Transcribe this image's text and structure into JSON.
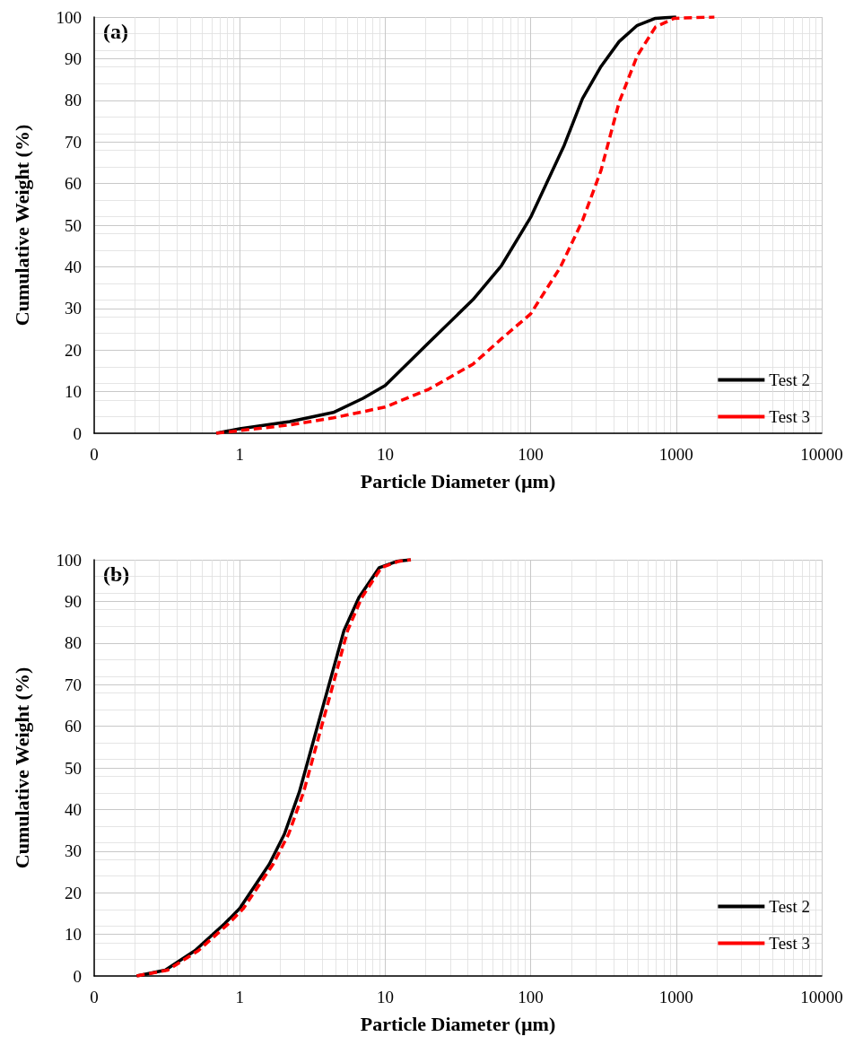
{
  "chart_data": [
    {
      "type": "line",
      "xlabel": "Particle Diameter (µm)",
      "ylabel": "Cumulative Weight (%)",
      "annotations": [
        "(a)"
      ],
      "log": "x",
      "grid": true,
      "legend": "bottom right",
      "marker": "none",
      "xlim": [
        0.1,
        10000
      ],
      "xticks": [
        {
          "value": 0.1,
          "label": "0"
        },
        1,
        10,
        100,
        1000,
        10000
      ],
      "ylim": [
        0,
        100
      ],
      "yticks": [
        0,
        10,
        20,
        30,
        40,
        50,
        60,
        70,
        80,
        90,
        100
      ],
      "series": [
        {
          "name": "Test 2",
          "color": "#000000",
          "line_style": "solid",
          "x": [
            0.69,
            1,
            2.21,
            4.4,
            7.05,
            10,
            20,
            40.1,
            63,
            100,
            170,
            227,
            304,
            405,
            540,
            720,
            970,
            1000
          ],
          "values": [
            0,
            1.1,
            2.8,
            5,
            8.4,
            11.5,
            21.8,
            32.1,
            40.3,
            51.9,
            69.2,
            80.4,
            88.1,
            94.1,
            98,
            99.7,
            100,
            100
          ]
        },
        {
          "name": "Test 3",
          "color": "#ff0000",
          "line_style": "dashed",
          "x": [
            0.69,
            2.21,
            4.4,
            10,
            20,
            40.1,
            63,
            100,
            160,
            227,
            304,
            405,
            540,
            720,
            970,
            1830
          ],
          "values": [
            0,
            2,
            3.7,
            6.3,
            10.6,
            16.6,
            22.7,
            28.7,
            39.9,
            51.1,
            63.1,
            79.5,
            90.7,
            97.6,
            99.7,
            100
          ]
        }
      ]
    },
    {
      "type": "line",
      "xlabel": "Particle Diameter (µm)",
      "ylabel": "Cumulative Weight (%)",
      "annotations": [
        "(b)"
      ],
      "log": "x",
      "grid": true,
      "legend": "bottom right",
      "marker": "none",
      "xlim": [
        0.1,
        10000
      ],
      "xticks": [
        {
          "value": 0.1,
          "label": "0"
        },
        1,
        10,
        100,
        1000,
        10000
      ],
      "ylim": [
        0,
        100
      ],
      "yticks": [
        0,
        10,
        20,
        30,
        40,
        50,
        60,
        70,
        80,
        90,
        100
      ],
      "series": [
        {
          "name": "Test 2",
          "color": "#000000",
          "line_style": "solid",
          "x": [
            0.196,
            0.308,
            0.493,
            0.79,
            1,
            1.6,
            2.03,
            2.57,
            3.25,
            4.11,
            5.21,
            6.59,
            9.1,
            12,
            15
          ],
          "values": [
            0,
            1.4,
            6.1,
            12.6,
            16.2,
            26.9,
            34.1,
            44.2,
            57.1,
            70,
            83,
            90.9,
            98.1,
            99.6,
            100
          ]
        },
        {
          "name": "Test 3",
          "color": "#ff0000",
          "line_style": "dashed",
          "x": [
            0.196,
            0.32,
            0.52,
            0.84,
            1.06,
            1.7,
            2.17,
            2.75,
            3.47,
            4.38,
            5.52,
            6.9,
            9.4,
            12.3,
            15
          ],
          "values": [
            0,
            1.4,
            6.1,
            12.6,
            16.2,
            26.9,
            34.1,
            44.2,
            57.1,
            70,
            83,
            90.9,
            98.1,
            99.6,
            100
          ]
        }
      ]
    }
  ]
}
